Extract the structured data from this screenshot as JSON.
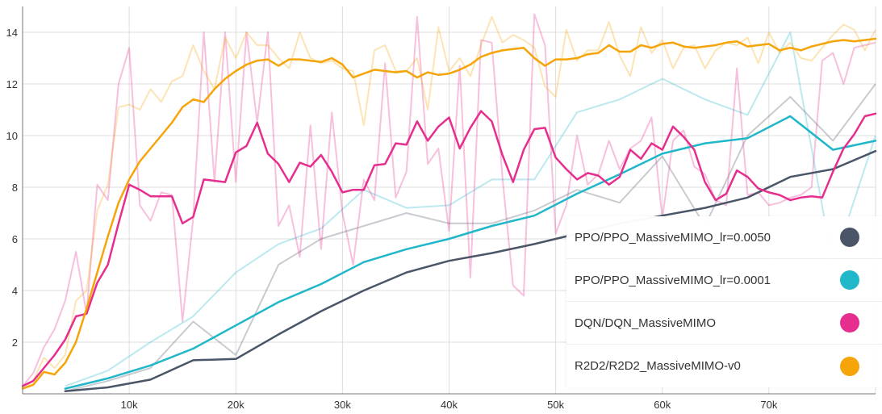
{
  "chart_data": {
    "type": "line",
    "title": "",
    "xlabel": "",
    "ylabel": "",
    "xlim": [
      0,
      80000
    ],
    "ylim": [
      0,
      15
    ],
    "xticks": [
      10000,
      20000,
      30000,
      40000,
      50000,
      60000,
      70000
    ],
    "xtick_labels": [
      "10k",
      "20k",
      "30k",
      "40k",
      "50k",
      "60k",
      "70k"
    ],
    "yticks": [
      2,
      4,
      6,
      8,
      10,
      12,
      14
    ],
    "ytick_labels": [
      "2",
      "4",
      "6",
      "8",
      "10",
      "12",
      "14"
    ],
    "grid": true,
    "legend_position": "bottom-right",
    "series": [
      {
        "name": "PPO/PPO_MassiveMIMO_lr=0.0050",
        "color": "#4a5568",
        "raw_values": {
          "x": [
            4000,
            8000,
            12000,
            16000,
            20000,
            24000,
            28000,
            32000,
            36000,
            40000,
            44000,
            48000,
            52000,
            56000,
            60000,
            64000,
            68000,
            72000,
            76000,
            80000
          ],
          "y": [
            0.1,
            0.5,
            1.0,
            2.8,
            1.5,
            5.0,
            6.0,
            6.5,
            7.0,
            6.6,
            6.6,
            7.1,
            7.9,
            7.4,
            9.2,
            6.5,
            10.0,
            11.5,
            9.8,
            12.0
          ]
        },
        "values": {
          "x": [
            4000,
            8000,
            12000,
            16000,
            20000,
            24000,
            28000,
            32000,
            36000,
            40000,
            44000,
            48000,
            52000,
            56000,
            60000,
            64000,
            68000,
            72000,
            76000,
            80000
          ],
          "y": [
            0.1,
            0.25,
            0.55,
            1.3,
            1.35,
            2.3,
            3.2,
            4.0,
            4.7,
            5.15,
            5.45,
            5.8,
            6.2,
            6.6,
            6.9,
            7.2,
            7.6,
            8.4,
            8.7,
            9.4
          ]
        }
      },
      {
        "name": "PPO/PPO_MassiveMIMO_lr=0.0001",
        "color": "#20b7c9",
        "raw_values": {
          "x": [
            4000,
            8000,
            12000,
            16000,
            20000,
            24000,
            28000,
            32000,
            36000,
            40000,
            44000,
            48000,
            52000,
            56000,
            60000,
            64000,
            68000,
            72000,
            76000,
            80000
          ],
          "y": [
            0.3,
            0.9,
            2.0,
            3.0,
            4.7,
            5.8,
            6.4,
            7.9,
            7.2,
            7.3,
            8.3,
            8.3,
            10.9,
            11.4,
            12.2,
            11.4,
            10.8,
            14.0,
            5.0,
            10.0
          ]
        },
        "values": {
          "x": [
            4000,
            8000,
            12000,
            16000,
            20000,
            24000,
            28000,
            32000,
            36000,
            40000,
            44000,
            48000,
            52000,
            56000,
            60000,
            64000,
            68000,
            72000,
            76000,
            80000
          ],
          "y": [
            0.2,
            0.6,
            1.1,
            1.75,
            2.65,
            3.55,
            4.25,
            5.1,
            5.6,
            6.0,
            6.5,
            6.9,
            7.75,
            8.5,
            9.3,
            9.7,
            9.9,
            10.75,
            9.45,
            9.8
          ]
        }
      },
      {
        "name": "DQN/DQN_MassiveMIMO",
        "color": "#e52e8e",
        "raw_values": {
          "x": [
            0,
            1000,
            2000,
            3000,
            4000,
            5000,
            6000,
            7000,
            8000,
            9000,
            10000,
            11000,
            12000,
            13000,
            14000,
            15000,
            16000,
            17000,
            18000,
            19000,
            20000,
            21000,
            22000,
            23000,
            24000,
            25000,
            26000,
            27000,
            28000,
            29000,
            30000,
            31000,
            32000,
            33000,
            34000,
            35000,
            36000,
            37000,
            38000,
            39000,
            40000,
            41000,
            42000,
            43000,
            44000,
            45000,
            46000,
            47000,
            48000,
            49000,
            50000,
            51000,
            52000,
            53000,
            54000,
            55000,
            56000,
            57000,
            58000,
            59000,
            60000,
            61000,
            62000,
            63000,
            64000,
            65000,
            66000,
            67000,
            68000,
            69000,
            70000,
            71000,
            72000,
            73000,
            74000,
            75000,
            76000,
            77000,
            78000,
            79000,
            80000
          ],
          "y": [
            0.3,
            0.8,
            1.8,
            2.5,
            3.6,
            5.5,
            3.1,
            8.1,
            7.5,
            12.0,
            13.4,
            7.3,
            6.7,
            7.8,
            7.7,
            2.8,
            6.8,
            14.0,
            8.2,
            14.0,
            8.2,
            14.0,
            10.5,
            14.0,
            6.5,
            7.3,
            5.3,
            10.4,
            5.6,
            10.9,
            7.0,
            5.0,
            8.3,
            7.5,
            12.8,
            7.6,
            8.6,
            14.6,
            8.9,
            9.5,
            6.3,
            12.7,
            4.5,
            13.7,
            13.6,
            8.4,
            4.2,
            3.8,
            14.7,
            13.5,
            6.2,
            7.3,
            10.0,
            8.1,
            8.5,
            9.8,
            8.7,
            9.5,
            9.8,
            10.7,
            6.8,
            9.8,
            10.2,
            8.8,
            8.5,
            7.5,
            7.3,
            12.6,
            7.7,
            7.8,
            7.3,
            7.4,
            7.6,
            7.7,
            8.0,
            12.9,
            13.2,
            12.0,
            13.4,
            13.5,
            13.6
          ]
        },
        "values": {
          "x": [
            0,
            1000,
            2000,
            3000,
            4000,
            5000,
            6000,
            7000,
            8000,
            9000,
            10000,
            11000,
            12000,
            13000,
            14000,
            15000,
            16000,
            17000,
            18000,
            19000,
            20000,
            21000,
            22000,
            23000,
            24000,
            25000,
            26000,
            27000,
            28000,
            29000,
            30000,
            31000,
            32000,
            33000,
            34000,
            35000,
            36000,
            37000,
            38000,
            39000,
            40000,
            41000,
            42000,
            43000,
            44000,
            45000,
            46000,
            47000,
            48000,
            49000,
            50000,
            51000,
            52000,
            53000,
            54000,
            55000,
            56000,
            57000,
            58000,
            59000,
            60000,
            61000,
            62000,
            63000,
            64000,
            65000,
            66000,
            67000,
            68000,
            69000,
            70000,
            71000,
            72000,
            73000,
            74000,
            75000,
            76000,
            77000,
            78000,
            79000,
            80000
          ],
          "y": [
            0.3,
            0.5,
            1.0,
            1.5,
            2.1,
            3.0,
            3.1,
            4.3,
            5.0,
            6.6,
            8.1,
            7.9,
            7.65,
            7.65,
            7.65,
            6.6,
            6.85,
            8.3,
            8.25,
            8.2,
            9.35,
            9.6,
            10.5,
            9.3,
            8.9,
            8.2,
            8.95,
            8.8,
            9.25,
            8.6,
            7.8,
            7.9,
            7.9,
            8.85,
            8.9,
            9.7,
            9.65,
            10.55,
            9.8,
            10.35,
            10.7,
            9.5,
            10.3,
            10.95,
            10.55,
            9.25,
            8.2,
            9.45,
            10.25,
            10.3,
            9.15,
            8.7,
            8.3,
            8.55,
            8.45,
            8.1,
            8.4,
            9.45,
            9.1,
            9.7,
            9.45,
            10.35,
            9.95,
            9.45,
            8.2,
            7.5,
            7.75,
            8.65,
            8.4,
            7.95,
            7.8,
            7.7,
            7.5,
            7.6,
            7.65,
            7.6,
            8.6,
            9.5,
            10.05,
            10.75,
            10.85
          ]
        }
      },
      {
        "name": "R2D2/R2D2_MassiveMIMO-v0",
        "color": "#f5a409",
        "raw_values": {
          "x": [
            0,
            1000,
            2000,
            3000,
            4000,
            5000,
            6000,
            7000,
            8000,
            9000,
            10000,
            11000,
            12000,
            13000,
            14000,
            15000,
            16000,
            17000,
            18000,
            19000,
            20000,
            21000,
            22000,
            23000,
            24000,
            25000,
            26000,
            27000,
            28000,
            29000,
            30000,
            31000,
            32000,
            33000,
            34000,
            35000,
            36000,
            37000,
            38000,
            39000,
            40000,
            41000,
            42000,
            43000,
            44000,
            45000,
            46000,
            47000,
            48000,
            49000,
            50000,
            51000,
            52000,
            53000,
            54000,
            55000,
            56000,
            57000,
            58000,
            59000,
            60000,
            61000,
            62000,
            63000,
            64000,
            65000,
            66000,
            67000,
            68000,
            69000,
            70000,
            71000,
            72000,
            73000,
            74000,
            75000,
            76000,
            77000,
            78000,
            79000,
            80000
          ],
          "y": [
            0.2,
            0.5,
            1.4,
            1.0,
            1.5,
            3.6,
            4.0,
            7.1,
            8.1,
            11.1,
            11.2,
            11.0,
            11.8,
            11.3,
            12.1,
            12.3,
            13.5,
            12.5,
            11.8,
            13.8,
            13.0,
            14.0,
            13.5,
            13.5,
            13.0,
            12.6,
            14.0,
            13.0,
            12.8,
            12.9,
            12.6,
            12.5,
            10.4,
            13.3,
            13.5,
            12.5,
            12.5,
            13.0,
            11.0,
            14.2,
            12.5,
            13.0,
            12.3,
            13.5,
            14.6,
            13.6,
            13.9,
            13.7,
            13.4,
            11.9,
            11.5,
            14.1,
            12.9,
            13.3,
            13.3,
            14.4,
            13.1,
            12.3,
            14.2,
            13.2,
            13.7,
            12.6,
            13.4,
            13.5,
            12.6,
            13.3,
            13.6,
            13.5,
            13.8,
            12.8,
            14.0,
            13.2,
            13.6,
            13.0,
            12.9,
            13.4,
            13.9,
            14.3,
            14.1,
            13.3,
            14.1
          ]
        },
        "values": {
          "x": [
            0,
            1000,
            2000,
            3000,
            4000,
            5000,
            6000,
            7000,
            8000,
            9000,
            10000,
            11000,
            12000,
            13000,
            14000,
            15000,
            16000,
            17000,
            18000,
            19000,
            20000,
            21000,
            22000,
            23000,
            24000,
            25000,
            26000,
            27000,
            28000,
            29000,
            30000,
            31000,
            32000,
            33000,
            34000,
            35000,
            36000,
            37000,
            38000,
            39000,
            40000,
            41000,
            42000,
            43000,
            44000,
            45000,
            46000,
            47000,
            48000,
            49000,
            50000,
            51000,
            52000,
            53000,
            54000,
            55000,
            56000,
            57000,
            58000,
            59000,
            60000,
            61000,
            62000,
            63000,
            64000,
            65000,
            66000,
            67000,
            68000,
            69000,
            70000,
            71000,
            72000,
            73000,
            74000,
            75000,
            76000,
            77000,
            78000,
            79000,
            80000
          ],
          "y": [
            0.2,
            0.35,
            0.85,
            0.75,
            1.2,
            2.0,
            3.3,
            4.7,
            6.1,
            7.4,
            8.3,
            9.0,
            9.5,
            10.0,
            10.5,
            11.1,
            11.4,
            11.3,
            11.8,
            12.2,
            12.5,
            12.75,
            12.9,
            12.95,
            12.7,
            12.95,
            12.95,
            12.9,
            12.85,
            13.0,
            12.75,
            12.25,
            12.4,
            12.55,
            12.5,
            12.45,
            12.5,
            12.25,
            12.45,
            12.35,
            12.4,
            12.55,
            12.75,
            13.05,
            13.2,
            13.3,
            13.35,
            13.4,
            13.0,
            12.7,
            12.95,
            12.95,
            13.0,
            13.15,
            13.2,
            13.5,
            13.25,
            13.25,
            13.5,
            13.4,
            13.55,
            13.6,
            13.45,
            13.4,
            13.45,
            13.5,
            13.6,
            13.65,
            13.45,
            13.5,
            13.55,
            13.3,
            13.4,
            13.3,
            13.45,
            13.55,
            13.65,
            13.7,
            13.65,
            13.7,
            13.75
          ]
        }
      }
    ]
  }
}
